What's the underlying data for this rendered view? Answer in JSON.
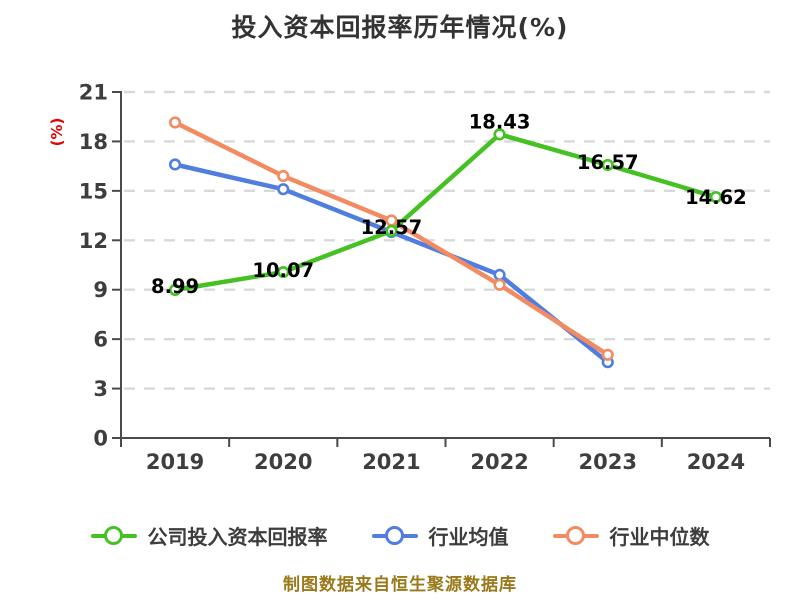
{
  "title": "投入资本回报率历年情况(%)",
  "y_axis_label": "(%)",
  "footer": "制图数据来自恒生聚源数据库",
  "colors": {
    "company_green": "#45c124",
    "industry_avg_blue": "#4f7ee0",
    "industry_median_orange": "#f28b62",
    "grid": "#d9d9d9",
    "axis": "#4a4a4a",
    "tick_text": "#3e3e3e",
    "title_text": "#333333",
    "ylabel_red": "#e60000",
    "footer_text": "#9a791b",
    "point_label_text": "#000000",
    "marker_fill": "#ffffff"
  },
  "chart_data": {
    "type": "line",
    "title": "投入资本回报率历年情况(%)",
    "ylabel": "(%)",
    "categories": [
      "2019",
      "2020",
      "2021",
      "2022",
      "2023",
      "2024"
    ],
    "yticks": [
      0,
      3,
      6,
      9,
      12,
      15,
      18,
      21
    ],
    "ylim": [
      0,
      21
    ],
    "grid": "horizontal-dashed",
    "legend_position": "bottom",
    "series": [
      {
        "name": "公司投入资本回报率",
        "color": "#45c124",
        "values": [
          8.99,
          10.07,
          12.57,
          18.43,
          16.57,
          14.62
        ],
        "point_labels": [
          "8.99",
          "10.07",
          "12.57",
          "18.43",
          "16.57",
          "14.62"
        ]
      },
      {
        "name": "行业均值",
        "color": "#4f7ee0",
        "values": [
          16.6,
          15.1,
          12.5,
          9.9,
          4.6,
          null
        ],
        "point_labels": []
      },
      {
        "name": "行业中位数",
        "color": "#f28b62",
        "values": [
          19.15,
          15.9,
          13.2,
          9.3,
          5.05,
          null
        ],
        "point_labels": []
      }
    ]
  }
}
